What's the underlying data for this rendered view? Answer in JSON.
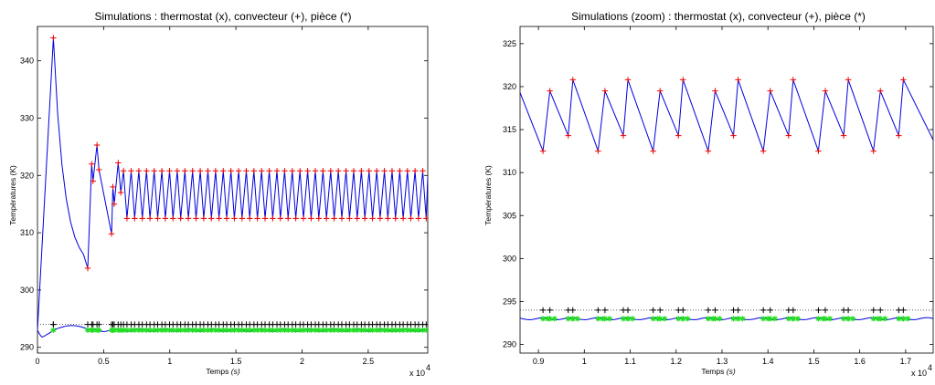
{
  "chart_data": [
    {
      "type": "line",
      "title": "Simulations : thermostat (x), convecteur (+), pièce (*)",
      "xlabel_main": "Temps ",
      "xlabel_unit": "(s)",
      "ylabel": "Températures (K)",
      "x_multiplier": "x 10",
      "x_multiplier_exp": "4",
      "xlim": [
        0,
        29500
      ],
      "ylim": [
        289,
        346
      ],
      "xticks": [
        0,
        5000,
        10000,
        15000,
        20000,
        25000
      ],
      "xtick_labels": [
        "0",
        "0.5",
        "1",
        "1.5",
        "2",
        "2.5"
      ],
      "yticks": [
        290,
        300,
        310,
        320,
        330,
        340
      ],
      "ytick_labels": [
        "290",
        "300",
        "310",
        "320",
        "330",
        "340"
      ],
      "convecteur_transient": [
        [
          0,
          293
        ],
        [
          1200,
          344
        ],
        [
          3800,
          303.8
        ],
        [
          4100,
          322
        ],
        [
          4200,
          319
        ],
        [
          4500,
          325.3
        ],
        [
          4650,
          321
        ],
        [
          5600,
          309.8
        ],
        [
          5700,
          318
        ],
        [
          5800,
          315
        ],
        [
          6100,
          322.2
        ],
        [
          6300,
          317
        ]
      ],
      "convecteur_periodic": {
        "x_start": 6300,
        "x_end": 29500,
        "period": 580,
        "max": 320.8,
        "min": 312.5
      },
      "thermostat_level": 294,
      "piece_level": 293,
      "grid": false,
      "colors": {
        "convecteur_line": "#0000dd",
        "convecteur_marker": "#ee0000",
        "thermostat_marker": "#000000",
        "piece_marker": "#22dd22",
        "reference_line": "#000000"
      }
    },
    {
      "type": "line",
      "title": "Simulations (zoom) : thermostat (x), convecteur (+), pièce (*)",
      "xlabel_main": "Temps ",
      "xlabel_unit": "(s)",
      "ylabel": "Températures (K)",
      "x_multiplier": "x 10",
      "x_multiplier_exp": "4",
      "xlim": [
        8600,
        17600
      ],
      "ylim": [
        289,
        327
      ],
      "xticks": [
        9000,
        10000,
        11000,
        12000,
        13000,
        14000,
        15000,
        16000,
        17000
      ],
      "xtick_labels": [
        "0.9",
        "1",
        "1.1",
        "1.2",
        "1.3",
        "1.4",
        "1.5",
        "1.6",
        "1.7"
      ],
      "yticks": [
        290,
        295,
        300,
        305,
        310,
        315,
        320,
        325
      ],
      "ytick_labels": [
        "290",
        "295",
        "300",
        "305",
        "310",
        "315",
        "320",
        "325"
      ],
      "convecteur_peaks": [
        [
          8600,
          319.3
        ],
        [
          9100,
          312.5
        ],
        [
          9250,
          319.5
        ],
        [
          9650,
          314.3
        ],
        [
          9750,
          320.8
        ],
        [
          10300,
          312.5
        ],
        [
          10450,
          319.5
        ],
        [
          10850,
          314.3
        ],
        [
          10950,
          320.8
        ],
        [
          11500,
          312.5
        ],
        [
          11650,
          319.5
        ],
        [
          12050,
          314.3
        ],
        [
          12150,
          320.8
        ],
        [
          12700,
          312.5
        ],
        [
          12850,
          319.5
        ],
        [
          13250,
          314.3
        ],
        [
          13350,
          320.8
        ],
        [
          13900,
          312.5
        ],
        [
          14050,
          319.5
        ],
        [
          14450,
          314.3
        ],
        [
          14550,
          320.8
        ],
        [
          15100,
          312.5
        ],
        [
          15250,
          319.5
        ],
        [
          15650,
          314.3
        ],
        [
          15750,
          320.8
        ],
        [
          16300,
          312.5
        ],
        [
          16450,
          319.5
        ],
        [
          16850,
          314.3
        ],
        [
          16950,
          320.8
        ],
        [
          17600,
          313.8
        ]
      ],
      "thermostat_level": 294,
      "piece_level": 293,
      "grid": false,
      "colors": {
        "convecteur_line": "#0000dd",
        "convecteur_marker": "#ee0000",
        "thermostat_marker": "#000000",
        "piece_marker": "#22dd22",
        "reference_line": "#000000"
      }
    }
  ]
}
